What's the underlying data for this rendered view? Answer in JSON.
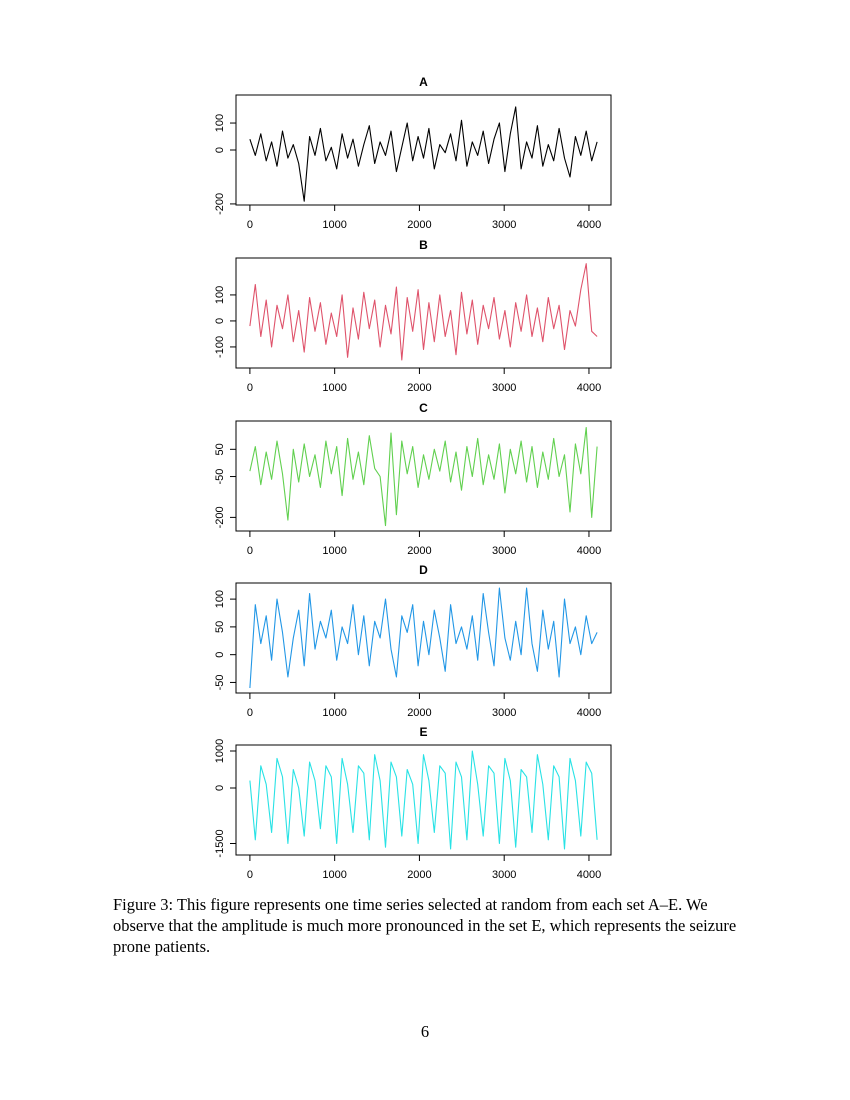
{
  "chart_data": [
    {
      "type": "line",
      "title": "A",
      "color": "#000000",
      "x": [
        0,
        64,
        128,
        192,
        256,
        320,
        384,
        448,
        512,
        576,
        640,
        704,
        768,
        832,
        896,
        960,
        1024,
        1088,
        1152,
        1216,
        1280,
        1344,
        1408,
        1472,
        1536,
        1600,
        1664,
        1728,
        1792,
        1856,
        1920,
        1984,
        2048,
        2112,
        2176,
        2240,
        2304,
        2368,
        2432,
        2496,
        2560,
        2624,
        2688,
        2752,
        2816,
        2880,
        2944,
        3008,
        3072,
        3136,
        3200,
        3264,
        3328,
        3392,
        3456,
        3520,
        3584,
        3648,
        3712,
        3776,
        3840,
        3904,
        3968,
        4032,
        4096
      ],
      "values": [
        40,
        -20,
        60,
        -40,
        30,
        -60,
        70,
        -30,
        20,
        -50,
        -190,
        50,
        -20,
        80,
        -40,
        10,
        -70,
        60,
        -30,
        40,
        -60,
        20,
        90,
        -50,
        30,
        -20,
        70,
        -80,
        10,
        100,
        -40,
        50,
        -30,
        80,
        -70,
        20,
        -10,
        60,
        -40,
        110,
        -60,
        30,
        -20,
        70,
        -50,
        40,
        100,
        -80,
        60,
        160,
        -70,
        30,
        -30,
        90,
        -60,
        20,
        -40,
        80,
        -30,
        -100,
        50,
        -20,
        70,
        -40,
        30
      ],
      "xlim": [
        -164,
        4260
      ],
      "ylim": [
        -204,
        204
      ],
      "xticks": [
        0,
        1000,
        2000,
        3000,
        4000
      ],
      "yticks": [
        -200,
        0,
        100
      ]
    },
    {
      "type": "line",
      "title": "B",
      "color": "#DF536B",
      "x": [
        0,
        64,
        128,
        192,
        256,
        320,
        384,
        448,
        512,
        576,
        640,
        704,
        768,
        832,
        896,
        960,
        1024,
        1088,
        1152,
        1216,
        1280,
        1344,
        1408,
        1472,
        1536,
        1600,
        1664,
        1728,
        1792,
        1856,
        1920,
        1984,
        2048,
        2112,
        2176,
        2240,
        2304,
        2368,
        2432,
        2496,
        2560,
        2624,
        2688,
        2752,
        2816,
        2880,
        2944,
        3008,
        3072,
        3136,
        3200,
        3264,
        3328,
        3392,
        3456,
        3520,
        3584,
        3648,
        3712,
        3776,
        3840,
        3904,
        3968,
        4032,
        4096
      ],
      "values": [
        -20,
        140,
        -60,
        80,
        -100,
        60,
        -30,
        100,
        -80,
        40,
        -120,
        90,
        -40,
        70,
        -90,
        30,
        -60,
        100,
        -140,
        50,
        -70,
        110,
        -30,
        80,
        -100,
        60,
        -50,
        130,
        -150,
        90,
        -40,
        120,
        -110,
        70,
        -80,
        100,
        -60,
        40,
        -130,
        110,
        -50,
        80,
        -90,
        60,
        -30,
        90,
        -70,
        40,
        -100,
        70,
        -40,
        100,
        -60,
        50,
        -80,
        90,
        -30,
        60,
        -110,
        40,
        -20,
        120,
        220,
        -40,
        -60
      ],
      "xlim": [
        -164,
        4260
      ],
      "ylim": [
        -181,
        242
      ],
      "xticks": [
        0,
        1000,
        2000,
        3000,
        4000
      ],
      "yticks": [
        -100,
        0,
        100
      ]
    },
    {
      "type": "line",
      "title": "C",
      "color": "#61D04F",
      "x": [
        0,
        64,
        128,
        192,
        256,
        320,
        384,
        448,
        512,
        576,
        640,
        704,
        768,
        832,
        896,
        960,
        1024,
        1088,
        1152,
        1216,
        1280,
        1344,
        1408,
        1472,
        1536,
        1600,
        1664,
        1728,
        1792,
        1856,
        1920,
        1984,
        2048,
        2112,
        2176,
        2240,
        2304,
        2368,
        2432,
        2496,
        2560,
        2624,
        2688,
        2752,
        2816,
        2880,
        2944,
        3008,
        3072,
        3136,
        3200,
        3264,
        3328,
        3392,
        3456,
        3520,
        3584,
        3648,
        3712,
        3776,
        3840,
        3904,
        3968,
        4032,
        4096
      ],
      "values": [
        -30,
        60,
        -80,
        40,
        -60,
        80,
        -40,
        -210,
        50,
        -70,
        70,
        -50,
        30,
        -90,
        80,
        -40,
        60,
        -120,
        90,
        -60,
        40,
        -80,
        100,
        -20,
        -50,
        -230,
        110,
        -190,
        80,
        -40,
        60,
        -90,
        30,
        -60,
        50,
        -30,
        80,
        -70,
        40,
        -100,
        60,
        -50,
        90,
        -80,
        30,
        -60,
        70,
        -110,
        50,
        -40,
        80,
        -70,
        60,
        -90,
        40,
        -60,
        90,
        -50,
        30,
        -180,
        70,
        -40,
        130,
        -200,
        60
      ],
      "xlim": [
        -164,
        4260
      ],
      "ylim": [
        -250,
        154
      ],
      "xticks": [
        0,
        1000,
        2000,
        3000,
        4000
      ],
      "yticks": [
        -200,
        -50,
        50
      ]
    },
    {
      "type": "line",
      "title": "D",
      "color": "#2297E6",
      "x": [
        0,
        64,
        128,
        192,
        256,
        320,
        384,
        448,
        512,
        576,
        640,
        704,
        768,
        832,
        896,
        960,
        1024,
        1088,
        1152,
        1216,
        1280,
        1344,
        1408,
        1472,
        1536,
        1600,
        1664,
        1728,
        1792,
        1856,
        1920,
        1984,
        2048,
        2112,
        2176,
        2240,
        2304,
        2368,
        2432,
        2496,
        2560,
        2624,
        2688,
        2752,
        2816,
        2880,
        2944,
        3008,
        3072,
        3136,
        3200,
        3264,
        3328,
        3392,
        3456,
        3520,
        3584,
        3648,
        3712,
        3776,
        3840,
        3904,
        3968,
        4032,
        4096
      ],
      "values": [
        -60,
        90,
        20,
        70,
        -10,
        100,
        40,
        -40,
        30,
        80,
        -20,
        110,
        10,
        60,
        30,
        80,
        -10,
        50,
        20,
        90,
        0,
        70,
        -20,
        60,
        30,
        100,
        10,
        -40,
        70,
        40,
        90,
        -20,
        60,
        0,
        80,
        30,
        -30,
        90,
        20,
        50,
        10,
        70,
        -10,
        110,
        40,
        -20,
        120,
        30,
        -10,
        60,
        0,
        120,
        20,
        -30,
        80,
        10,
        60,
        -40,
        100,
        20,
        50,
        0,
        70,
        20,
        40
      ],
      "xlim": [
        -164,
        4260
      ],
      "ylim": [
        -69,
        129
      ],
      "xticks": [
        0,
        1000,
        2000,
        3000,
        4000
      ],
      "yticks": [
        -50,
        0,
        50,
        100
      ]
    },
    {
      "type": "line",
      "title": "E",
      "color": "#28E2E5",
      "x": [
        0,
        64,
        128,
        192,
        256,
        320,
        384,
        448,
        512,
        576,
        640,
        704,
        768,
        832,
        896,
        960,
        1024,
        1088,
        1152,
        1216,
        1280,
        1344,
        1408,
        1472,
        1536,
        1600,
        1664,
        1728,
        1792,
        1856,
        1920,
        1984,
        2048,
        2112,
        2176,
        2240,
        2304,
        2368,
        2432,
        2496,
        2560,
        2624,
        2688,
        2752,
        2816,
        2880,
        2944,
        3008,
        3072,
        3136,
        3200,
        3264,
        3328,
        3392,
        3456,
        3520,
        3584,
        3648,
        3712,
        3776,
        3840,
        3904,
        3968,
        4032,
        4096
      ],
      "values": [
        200,
        -1400,
        600,
        100,
        -1200,
        800,
        300,
        -1500,
        500,
        0,
        -1300,
        700,
        200,
        -1100,
        600,
        300,
        -1500,
        800,
        100,
        -1200,
        600,
        400,
        -1400,
        900,
        200,
        -1600,
        700,
        300,
        -1300,
        500,
        100,
        -1500,
        900,
        200,
        -1200,
        600,
        400,
        -1650,
        700,
        300,
        -1400,
        1000,
        100,
        -1300,
        600,
        400,
        -1500,
        800,
        200,
        -1600,
        500,
        300,
        -1200,
        900,
        100,
        -1400,
        600,
        300,
        -1650,
        800,
        200,
        -1300,
        700,
        400,
        -1400
      ],
      "xlim": [
        -164,
        4260
      ],
      "ylim": [
        -1811,
        1162
      ],
      "xticks": [
        0,
        1000,
        2000,
        3000,
        4000
      ],
      "yticks": [
        -1500,
        0,
        1000
      ]
    }
  ],
  "caption": "Figure 3: This figure represents one time series selected at random from each set A–E. We observe that the amplitude is much more pronounced in the set E, which represents the seizure prone patients.",
  "page_number": "6"
}
